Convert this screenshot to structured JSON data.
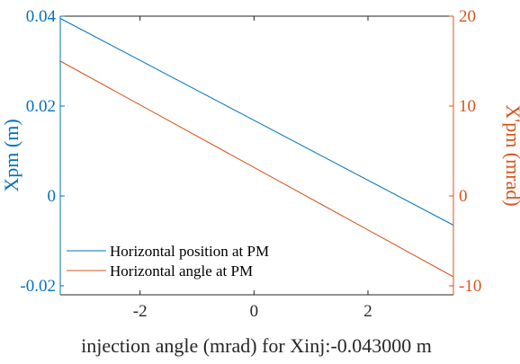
{
  "chart_data": {
    "type": "line",
    "xlabel": "injection angle (mrad) for Xinj:-0.043000 m",
    "xlim": [
      -3.4,
      3.5
    ],
    "xticks": [
      -2,
      0,
      2
    ],
    "xtick_labels": [
      "-2",
      "0",
      "2"
    ],
    "y_left": {
      "label": "Xpm (m)",
      "color": "#0072BD",
      "lim": [
        -0.022,
        0.04
      ],
      "ticks": [
        0.04,
        0.02,
        0,
        -0.02
      ],
      "tick_labels": [
        "0.04",
        "0.02",
        "0",
        "-0.02"
      ]
    },
    "y_right": {
      "label": "X'pm (mrad)",
      "color": "#D95319",
      "lim": [
        -11,
        20
      ],
      "ticks": [
        20,
        10,
        0,
        -10
      ],
      "tick_labels": [
        "20",
        "10",
        "0",
        "-10"
      ]
    },
    "series": [
      {
        "name": "Horizontal position at PM",
        "axis": "left",
        "color": "#0072BD",
        "x": [
          -3.4,
          3.5
        ],
        "y": [
          0.0395,
          -0.0065
        ]
      },
      {
        "name": "Horizontal angle at PM",
        "axis": "right",
        "color": "#D95319",
        "x": [
          -3.4,
          3.5
        ],
        "y": [
          15.0,
          -9.0
        ]
      }
    ],
    "legend_position": "bottom-left",
    "grid": false
  }
}
